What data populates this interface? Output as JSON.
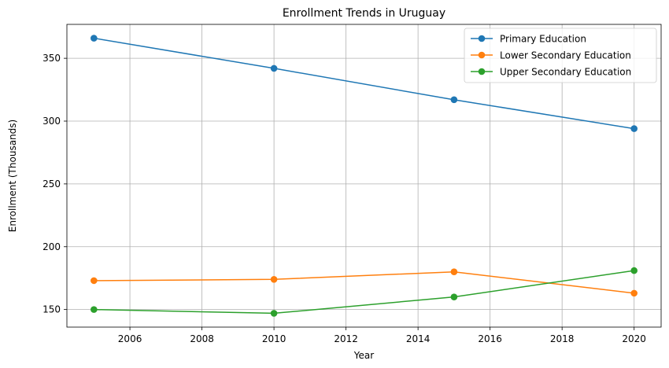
{
  "chart_data": {
    "type": "line",
    "title": "Enrollment Trends in Uruguay",
    "xlabel": "Year",
    "ylabel": "Enrollment (Thousands)",
    "x": [
      2005,
      2010,
      2015,
      2020
    ],
    "xlim": [
      2004.25,
      2020.75
    ],
    "ylim": [
      136,
      377
    ],
    "xticks": [
      2006,
      2008,
      2010,
      2012,
      2014,
      2016,
      2018,
      2020
    ],
    "yticks": [
      150,
      200,
      250,
      300,
      350
    ],
    "grid": true,
    "legend_position": "upper right",
    "series": [
      {
        "name": "Primary Education",
        "color": "#1f77b4",
        "values": [
          366,
          342,
          317,
          294
        ]
      },
      {
        "name": "Lower Secondary Education",
        "color": "#ff7f0e",
        "values": [
          173,
          174,
          180,
          163
        ]
      },
      {
        "name": "Upper Secondary Education",
        "color": "#2ca02c",
        "values": [
          150,
          147,
          160,
          181
        ]
      }
    ]
  }
}
